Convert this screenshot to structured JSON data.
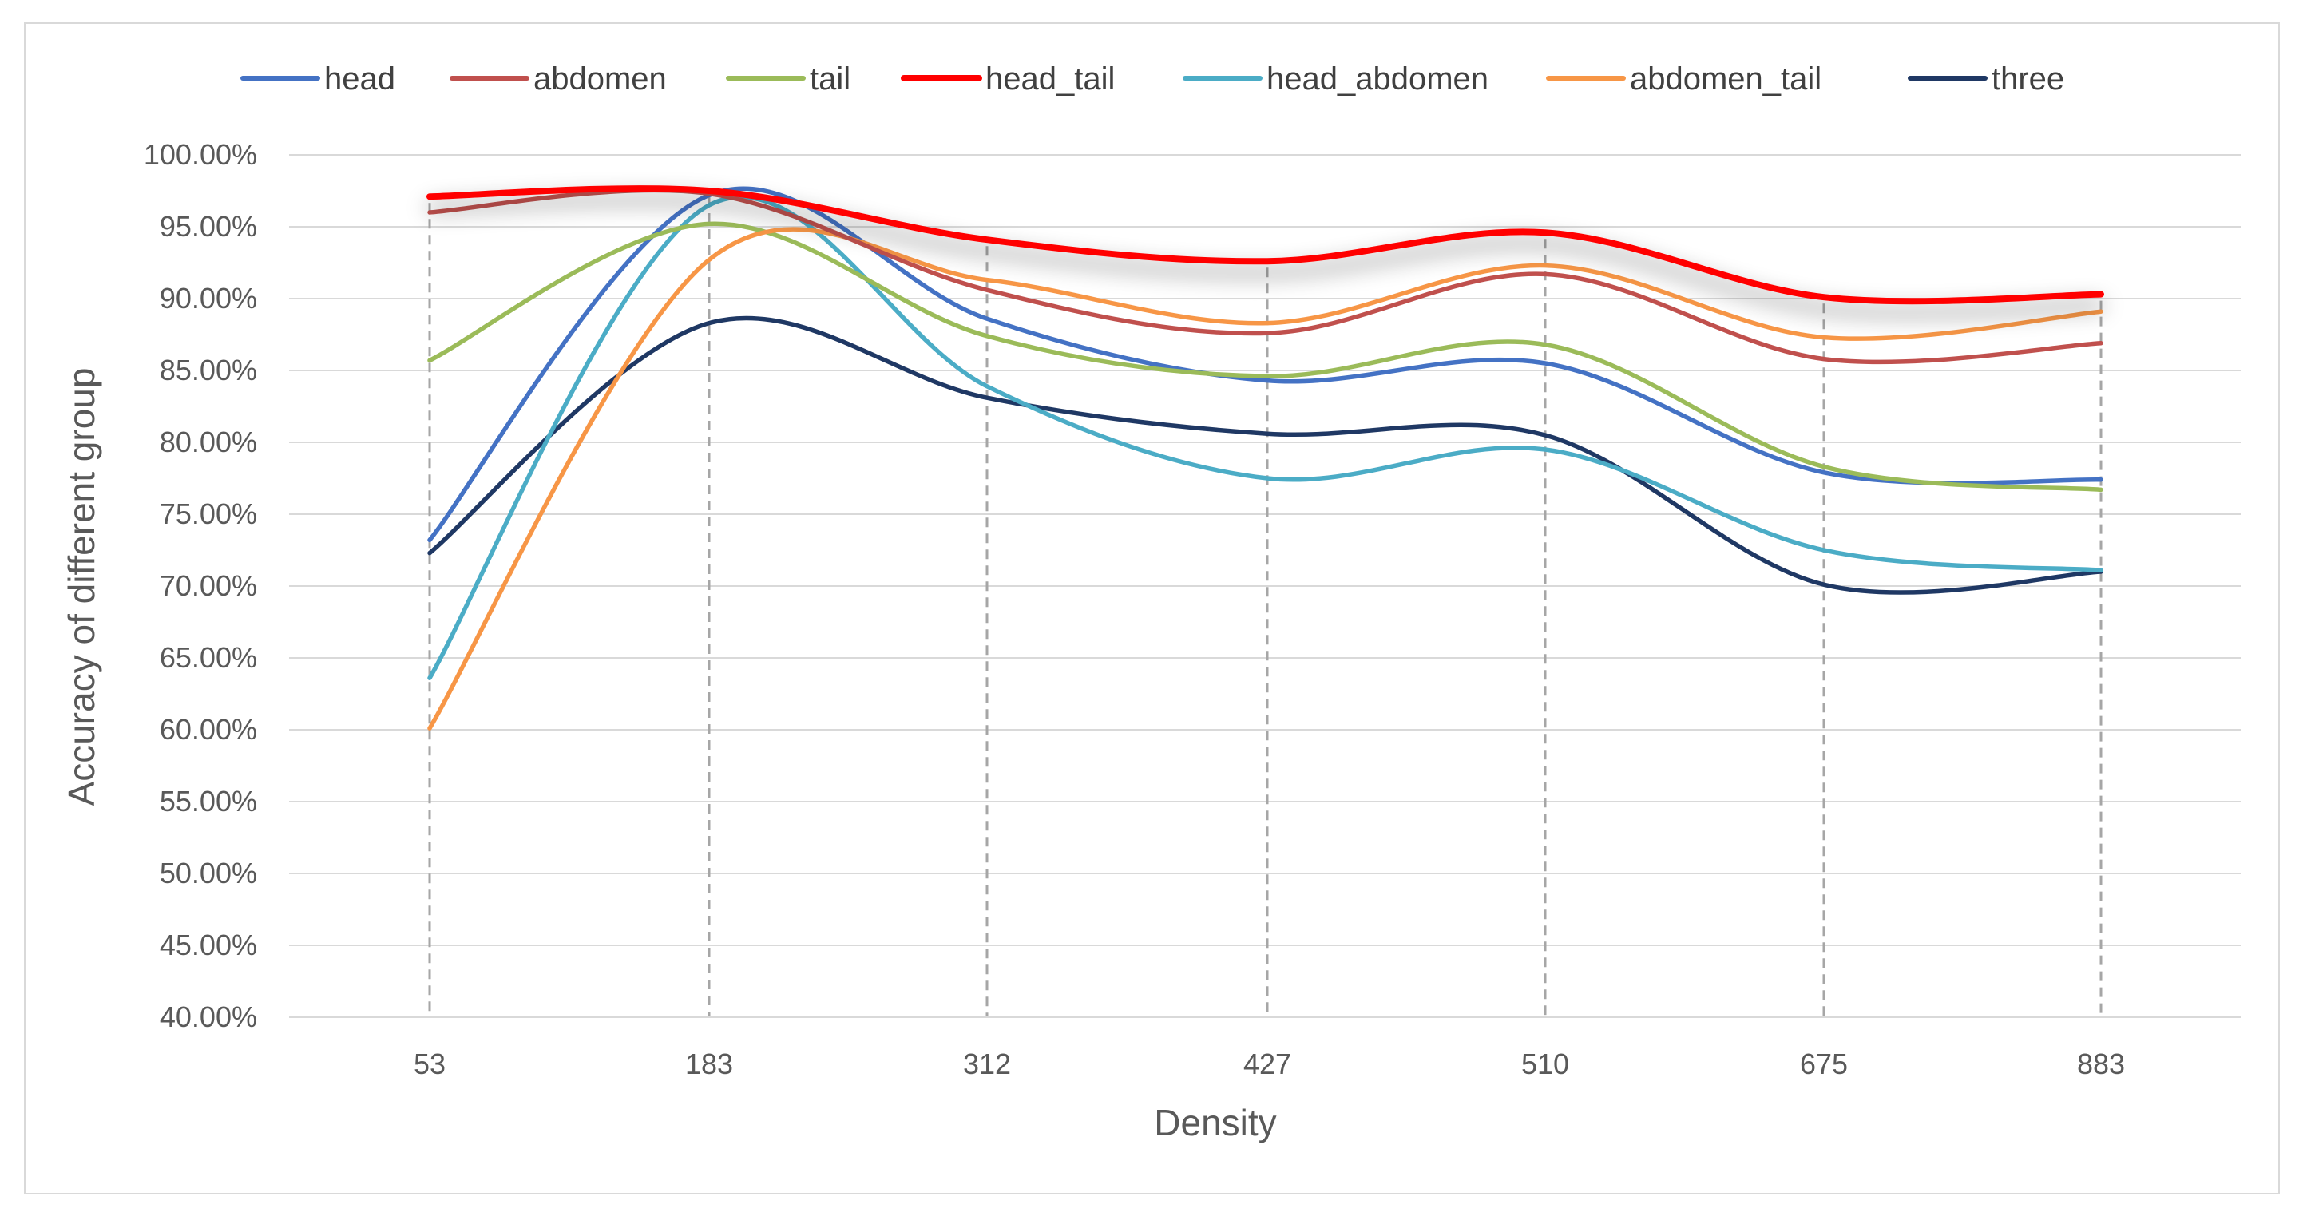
{
  "chart_data": {
    "type": "line",
    "title": "",
    "xlabel": "Density",
    "ylabel": "Accuracy of different group",
    "categories": [
      "53",
      "183",
      "312",
      "427",
      "510",
      "675",
      "883"
    ],
    "ylim": [
      40,
      100
    ],
    "y_tick_step": 5,
    "y_tick_labels": [
      "40.00%",
      "45.00%",
      "50.00%",
      "55.00%",
      "60.00%",
      "65.00%",
      "70.00%",
      "75.00%",
      "80.00%",
      "85.00%",
      "90.00%",
      "95.00%",
      "100.00%"
    ],
    "grid": "horizontal solid, vertical dashed at categories",
    "legend_position": "top",
    "series": [
      {
        "name": "head",
        "color": "#4472C4",
        "values": [
          73.2,
          97.2,
          88.6,
          84.3,
          85.5,
          77.9,
          77.4
        ]
      },
      {
        "name": "abdomen",
        "color": "#C0504D",
        "values": [
          96.0,
          97.3,
          90.6,
          87.6,
          91.7,
          85.8,
          86.9
        ]
      },
      {
        "name": "tail",
        "color": "#9BBB59",
        "values": [
          85.7,
          95.2,
          87.4,
          84.6,
          86.8,
          78.3,
          76.7
        ]
      },
      {
        "name": "head_tail",
        "color": "#FF0000",
        "values": [
          97.1,
          97.5,
          94.1,
          92.6,
          94.6,
          90.1,
          90.3
        ]
      },
      {
        "name": "head_abdomen",
        "color": "#4BACC6",
        "values": [
          63.6,
          96.5,
          83.9,
          77.5,
          79.5,
          72.5,
          71.1
        ]
      },
      {
        "name": "abdomen_tail",
        "color": "#F79646",
        "values": [
          60.1,
          92.7,
          91.3,
          88.3,
          92.3,
          87.3,
          89.1
        ]
      },
      {
        "name": "three",
        "color": "#1F3864",
        "values": [
          72.3,
          88.3,
          83.1,
          80.6,
          80.5,
          70.1,
          71.0
        ]
      }
    ]
  }
}
